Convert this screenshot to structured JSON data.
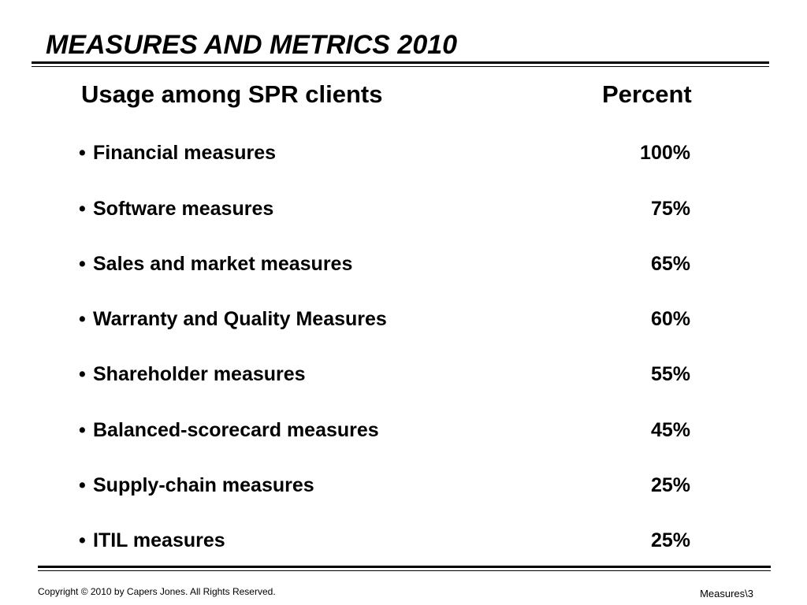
{
  "slide": {
    "title": "MEASURES AND METRICS 2010",
    "header_left": "Usage among SPR clients",
    "header_right": "Percent",
    "bullet": "•",
    "rows": [
      {
        "label": "Financial measures",
        "value": "100%"
      },
      {
        "label": "Software measures",
        "value": "75%"
      },
      {
        "label": "Sales and market measures",
        "value": "65%"
      },
      {
        "label": "Warranty and Quality Measures",
        "value": "60%"
      },
      {
        "label": "Shareholder measures",
        "value": "55%"
      },
      {
        "label": "Balanced-scorecard measures",
        "value": "45%"
      },
      {
        "label": "Supply-chain measures",
        "value": "25%"
      },
      {
        "label": "ITIL measures",
        "value": "25%"
      }
    ],
    "footer_left": "Copyright © 2010  by Capers Jones.  All Rights Reserved.",
    "footer_right": "Measures\\3"
  }
}
